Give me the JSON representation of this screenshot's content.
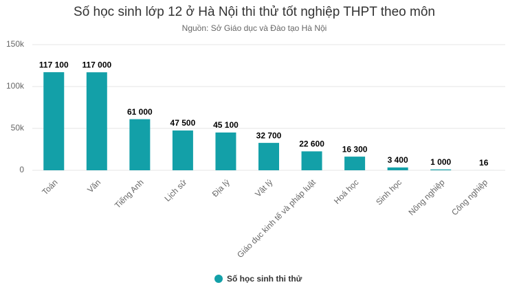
{
  "chart_data": {
    "type": "bar",
    "title": "Số học sinh lớp 12 ở Hà Nội thi thử tốt nghiệp THPT theo môn",
    "subtitle": "Nguồn: Sở Giáo dục và Đào tạo Hà Nội",
    "categories": [
      "Toán",
      "Văn",
      "Tiếng Anh",
      "Lịch sử",
      "Địa lý",
      "Vật lý",
      "Giáo dục kinh tế và pháp luật",
      "Hoá học",
      "Sinh học",
      "Nông nghiệp",
      "Công nghiệp"
    ],
    "series": [
      {
        "name": "Số học sinh thi thử",
        "color": "#13a0a8",
        "values": [
          117100,
          117000,
          61000,
          47500,
          45100,
          32700,
          22600,
          16300,
          3400,
          1000,
          16
        ],
        "value_labels": [
          "117 100",
          "117 000",
          "61 000",
          "47 500",
          "45 100",
          "32 700",
          "22 600",
          "16 300",
          "3 400",
          "1 000",
          "16"
        ]
      }
    ],
    "ylim": [
      0,
      150000
    ],
    "yticks": [
      0,
      {
        "value": 50000,
        "label": "50k"
      },
      {
        "value": 100000,
        "label": "100k"
      },
      {
        "value": 150000,
        "label": "150k"
      }
    ],
    "grid": true
  }
}
